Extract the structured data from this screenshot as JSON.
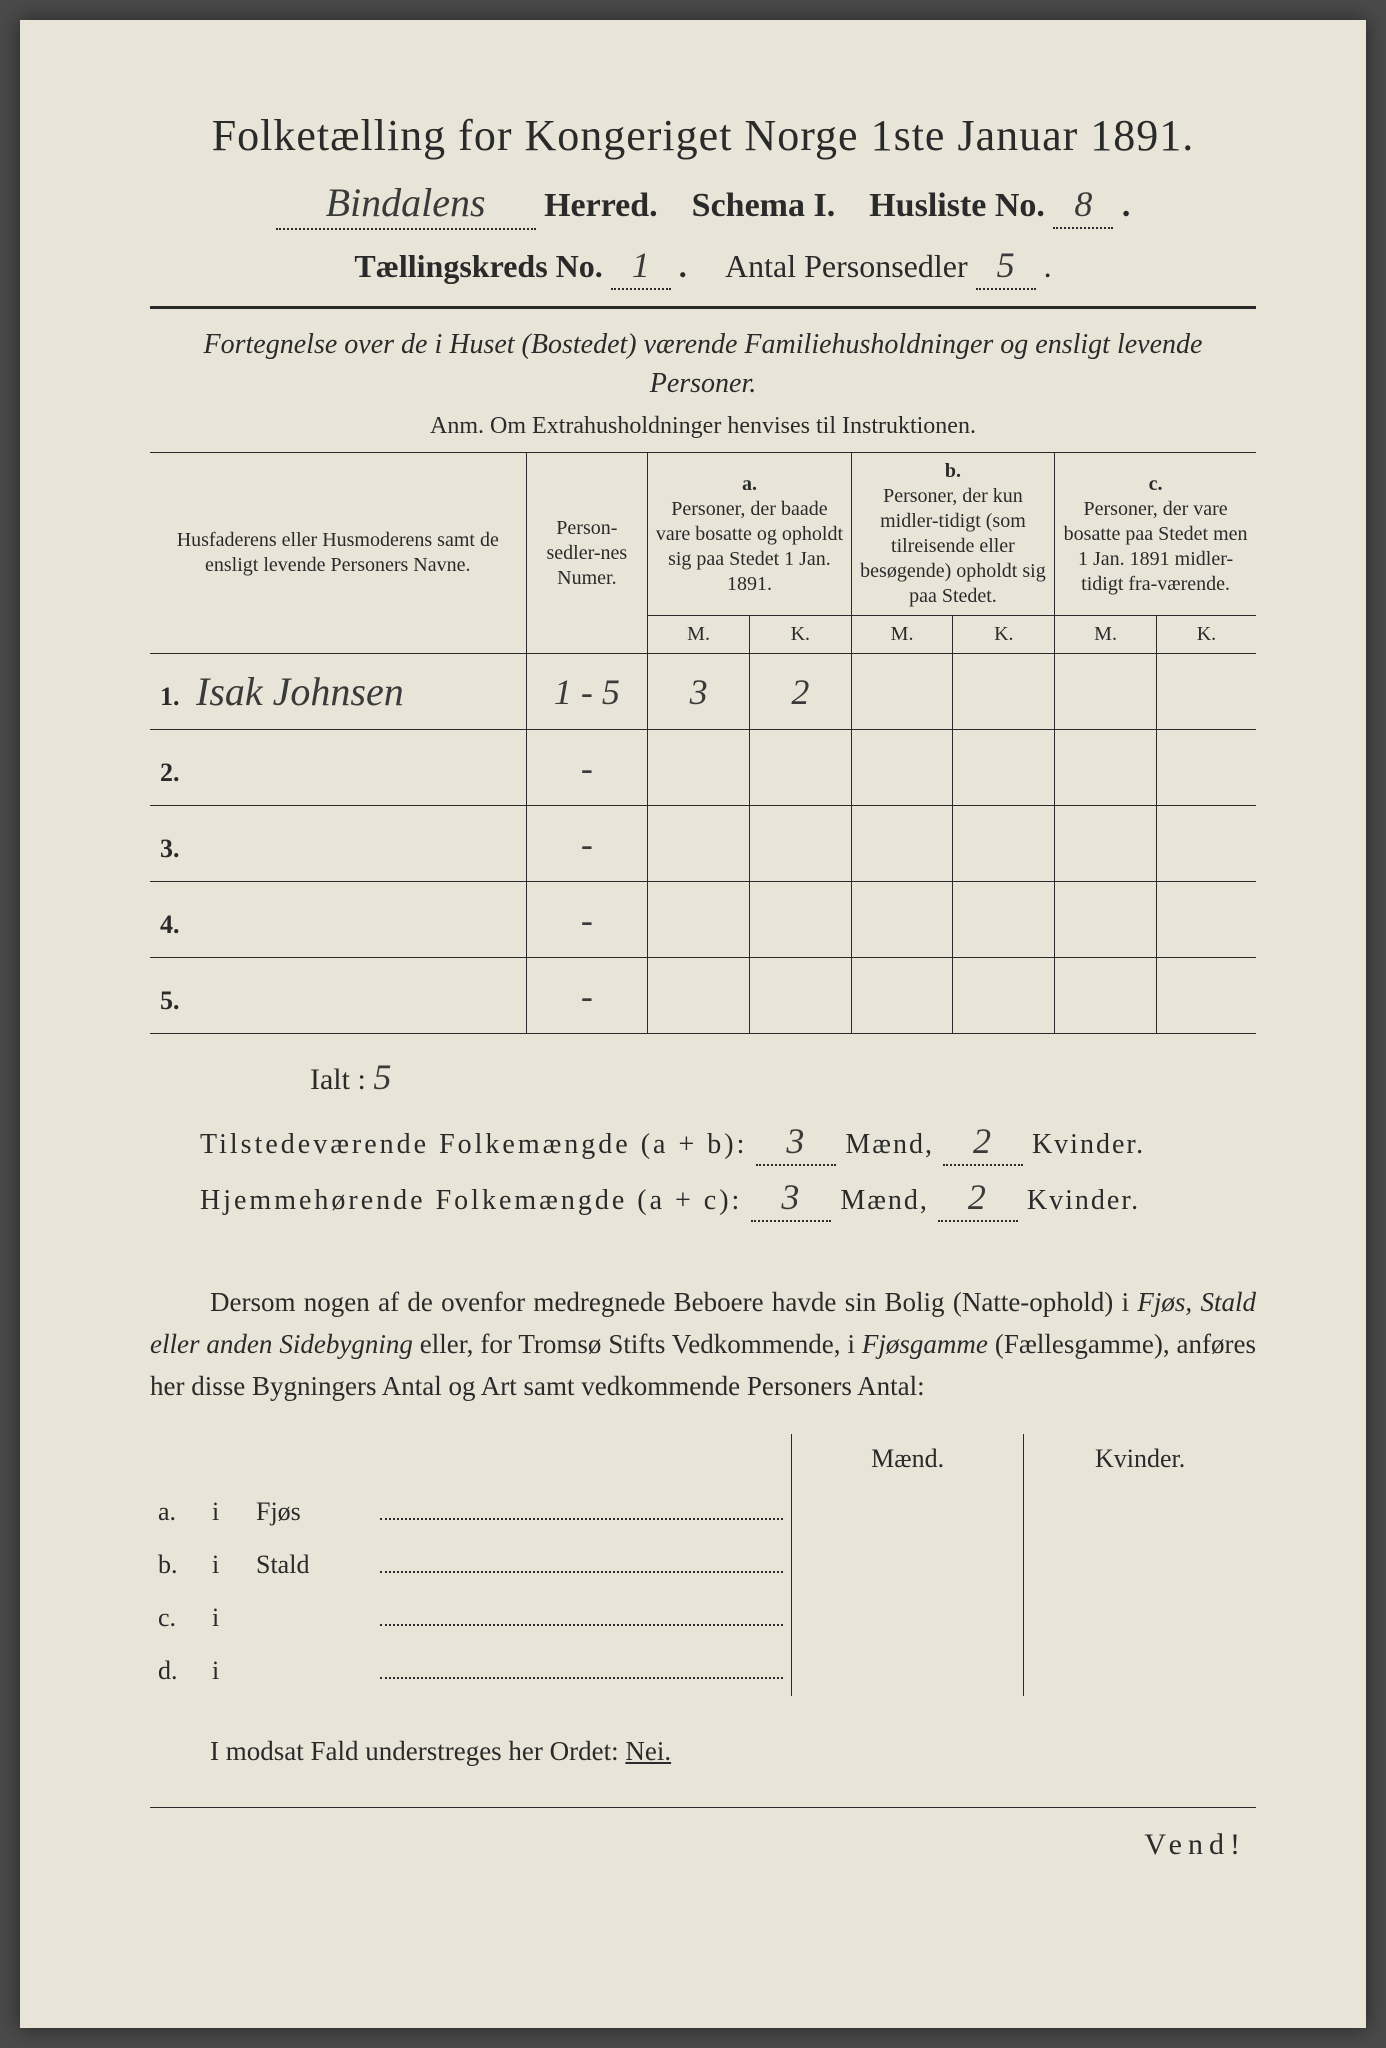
{
  "title": "Folketælling for Kongeriget Norge 1ste Januar 1891.",
  "header": {
    "herred_value": "Bindalens",
    "herred_label": "Herred.",
    "schema_label": "Schema I.",
    "husliste_label": "Husliste No.",
    "husliste_value": "8",
    "kreds_label": "Tællingskreds No.",
    "kreds_value": "1",
    "antal_label": "Antal Personsedler",
    "antal_value": "5"
  },
  "subtitle": "Fortegnelse over de i Huset (Bostedet) værende Familiehusholdninger og ensligt levende Personer.",
  "anm": "Anm. Om Extrahusholdninger henvises til Instruktionen.",
  "table": {
    "col_name": "Husfaderens eller Husmoderens samt de ensligt levende Personers Navne.",
    "col_num": "Person-sedler-nes Numer.",
    "col_a_letter": "a.",
    "col_a": "Personer, der baade vare bosatte og opholdt sig paa Stedet 1 Jan. 1891.",
    "col_b_letter": "b.",
    "col_b": "Personer, der kun midler-tidigt (som tilreisende eller besøgende) opholdt sig paa Stedet.",
    "col_c_letter": "c.",
    "col_c": "Personer, der vare bosatte paa Stedet men 1 Jan. 1891 midler-tidigt fra-værende.",
    "m": "M.",
    "k": "K.",
    "rows": [
      {
        "n": "1.",
        "name": "Isak Johnsen",
        "num": "1 - 5",
        "am": "3",
        "ak": "2",
        "bm": "",
        "bk": "",
        "cm": "",
        "ck": ""
      },
      {
        "n": "2.",
        "name": "",
        "num": "-",
        "am": "",
        "ak": "",
        "bm": "",
        "bk": "",
        "cm": "",
        "ck": ""
      },
      {
        "n": "3.",
        "name": "",
        "num": "-",
        "am": "",
        "ak": "",
        "bm": "",
        "bk": "",
        "cm": "",
        "ck": ""
      },
      {
        "n": "4.",
        "name": "",
        "num": "-",
        "am": "",
        "ak": "",
        "bm": "",
        "bk": "",
        "cm": "",
        "ck": ""
      },
      {
        "n": "5.",
        "name": "",
        "num": "-",
        "am": "",
        "ak": "",
        "bm": "",
        "bk": "",
        "cm": "",
        "ck": ""
      }
    ]
  },
  "ialt_label": "Ialt :",
  "ialt_value": "5",
  "summary": {
    "line1_label": "Tilstedeværende Folkemængde (a + b):",
    "line1_m": "3",
    "line1_k": "2",
    "line2_label": "Hjemmehørende Folkemængde (a + c):",
    "line2_m": "3",
    "line2_k": "2",
    "maend": "Mænd,",
    "kvinder": "Kvinder."
  },
  "paragraph": {
    "p1": "Dersom nogen af de ovenfor medregnede Beboere havde sin Bolig (Natte-ophold) i ",
    "p1_i1": "Fjøs, Stald eller anden Sidebygning",
    "p1_mid": " eller, for Tromsø Stifts Vedkommende, i ",
    "p1_i2": "Fjøsgamme",
    "p1_paren": " (Fællesgamme), anføres her disse Bygningers Antal og Art samt vedkommende Personers Antal:"
  },
  "building": {
    "maend": "Mænd.",
    "kvinder": "Kvinder.",
    "rows": [
      {
        "letter": "a.",
        "i": "i",
        "name": "Fjøs"
      },
      {
        "letter": "b.",
        "i": "i",
        "name": "Stald"
      },
      {
        "letter": "c.",
        "i": "i",
        "name": ""
      },
      {
        "letter": "d.",
        "i": "i",
        "name": ""
      }
    ]
  },
  "modsat": "I modsat Fald understreges her Ordet: ",
  "nei": "Nei.",
  "vend": "Vend!",
  "colors": {
    "paper": "#e8e5d8",
    "ink": "#2a2a2a",
    "background": "#4a4a4a"
  }
}
